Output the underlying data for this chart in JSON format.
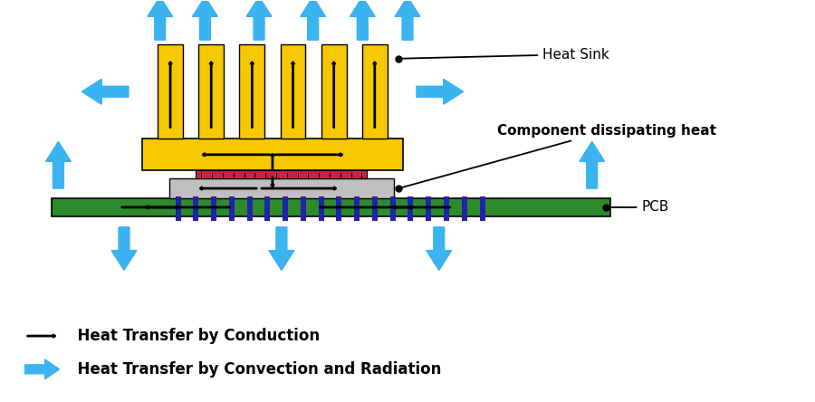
{
  "bg_color": "#ffffff",
  "pcb_color": "#2d8a2d",
  "heatsink_color": "#f5c800",
  "component_color": "#c0c0c0",
  "thermal_pad_color": "#cc2244",
  "chip_legs_color": "#2222aa",
  "black": "#000000",
  "blue_arrow": "#3bb3f0",
  "legend_conduction": "  Heat Transfer by Conduction",
  "legend_convection": "  Heat Transfer by Convection and Radiation",
  "label_heatsink": "Heat Sink",
  "label_component": "Component dissipating heat",
  "label_pcb": "PCB"
}
